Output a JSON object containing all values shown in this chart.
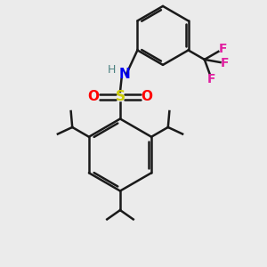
{
  "background_color": "#ebebeb",
  "bond_color": "#1a1a1a",
  "S_color": "#cccc00",
  "O_color": "#ff0000",
  "N_color": "#0000ee",
  "H_color": "#4a8080",
  "F_color": "#e020a0",
  "bond_width": 1.8,
  "figsize": [
    3.0,
    3.0
  ],
  "dpi": 100,
  "xlim": [
    0,
    10
  ],
  "ylim": [
    0,
    10
  ]
}
